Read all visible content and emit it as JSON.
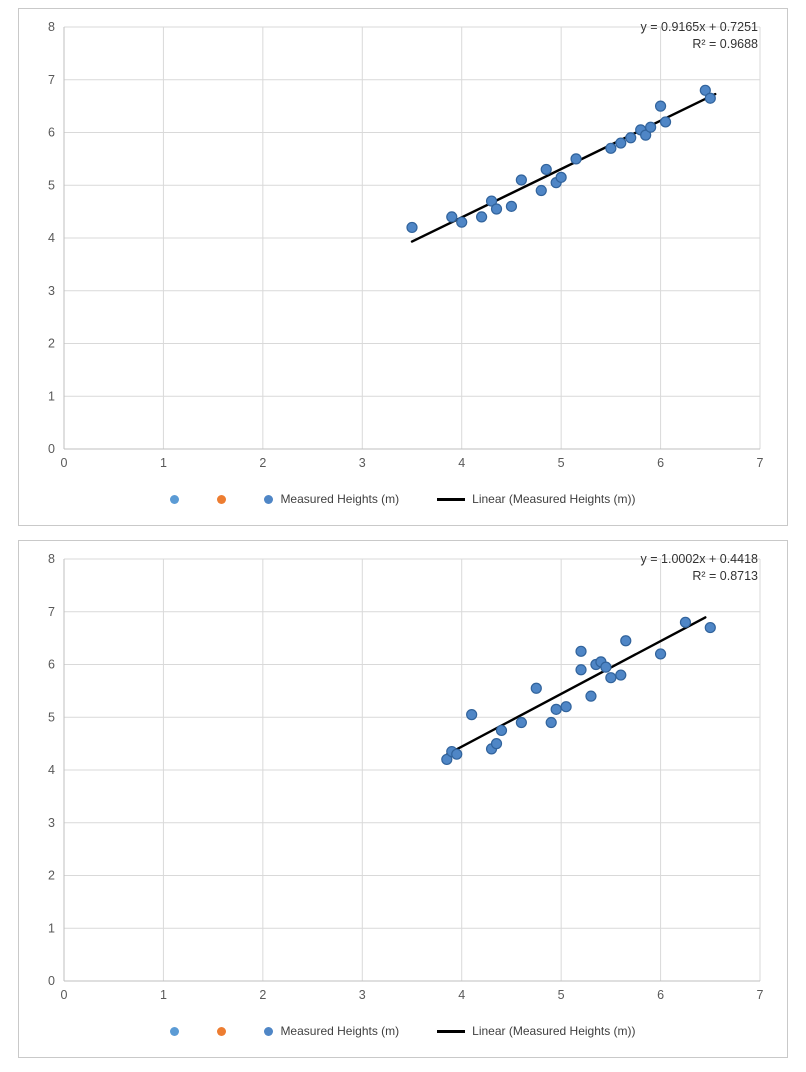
{
  "page": {
    "background": "#ffffff",
    "panel_border": "#c9c9c9"
  },
  "style": {
    "grid_color": "#d9d9d9",
    "axis_color": "#bfbfbf",
    "tick_color": "#595959",
    "annotation_color": "#333333",
    "point_fill": "#4f86c6",
    "point_stroke": "#31639c",
    "trend_color": "#000000"
  },
  "chart_data": [
    {
      "type": "scatter",
      "title": "",
      "xlabel": "",
      "ylabel": "",
      "equation": "y = 0.9165x + 0.7251",
      "r_squared": "R² = 0.9688",
      "xlim": [
        0,
        7
      ],
      "ylim": [
        0,
        8
      ],
      "x_ticks": [
        0,
        1,
        2,
        3,
        4,
        5,
        6,
        7
      ],
      "y_ticks": [
        0,
        1,
        2,
        3,
        4,
        5,
        6,
        7,
        8
      ],
      "grid": true,
      "legend_position": "bottom",
      "series": [
        {
          "name": "Measured Heights (m)",
          "points": [
            [
              3.5,
              4.2
            ],
            [
              3.9,
              4.4
            ],
            [
              4.0,
              4.3
            ],
            [
              4.2,
              4.4
            ],
            [
              4.3,
              4.7
            ],
            [
              4.35,
              4.55
            ],
            [
              4.5,
              4.6
            ],
            [
              4.6,
              5.1
            ],
            [
              4.8,
              4.9
            ],
            [
              4.85,
              5.3
            ],
            [
              4.95,
              5.05
            ],
            [
              5.0,
              5.15
            ],
            [
              5.15,
              5.5
            ],
            [
              5.5,
              5.7
            ],
            [
              5.6,
              5.8
            ],
            [
              5.7,
              5.9
            ],
            [
              5.8,
              6.05
            ],
            [
              5.85,
              5.95
            ],
            [
              5.9,
              6.1
            ],
            [
              6.0,
              6.5
            ],
            [
              6.05,
              6.2
            ],
            [
              6.45,
              6.8
            ],
            [
              6.5,
              6.65
            ]
          ]
        }
      ],
      "trendline": {
        "label": "Linear (Measured Heights (m))",
        "slope": 0.9165,
        "intercept": 0.7251,
        "x_range": [
          3.5,
          6.55
        ]
      },
      "legend": [
        {
          "marker": "dot",
          "color": "#5b9bd5",
          "label": ""
        },
        {
          "marker": "dot",
          "color": "#ed7d31",
          "label": ""
        },
        {
          "marker": "dot",
          "color": "#4f86c6",
          "label": "Measured Heights (m)"
        },
        {
          "marker": "line",
          "color": "#000000",
          "label": "Linear (Measured Heights (m))"
        }
      ]
    },
    {
      "type": "scatter",
      "title": "",
      "xlabel": "",
      "ylabel": "",
      "equation": "y = 1.0002x + 0.4418",
      "r_squared": "R² = 0.8713",
      "xlim": [
        0,
        7
      ],
      "ylim": [
        0,
        8
      ],
      "x_ticks": [
        0,
        1,
        2,
        3,
        4,
        5,
        6,
        7
      ],
      "y_ticks": [
        0,
        1,
        2,
        3,
        4,
        5,
        6,
        7,
        8
      ],
      "grid": true,
      "legend_position": "bottom",
      "series": [
        {
          "name": "Measured Heights (m)",
          "points": [
            [
              3.85,
              4.2
            ],
            [
              3.9,
              4.35
            ],
            [
              3.95,
              4.3
            ],
            [
              4.1,
              5.05
            ],
            [
              4.3,
              4.4
            ],
            [
              4.35,
              4.5
            ],
            [
              4.4,
              4.75
            ],
            [
              4.6,
              4.9
            ],
            [
              4.75,
              5.55
            ],
            [
              4.9,
              4.9
            ],
            [
              4.95,
              5.15
            ],
            [
              5.05,
              5.2
            ],
            [
              5.2,
              6.25
            ],
            [
              5.2,
              5.9
            ],
            [
              5.3,
              5.4
            ],
            [
              5.35,
              6.0
            ],
            [
              5.4,
              6.05
            ],
            [
              5.45,
              5.95
            ],
            [
              5.5,
              5.75
            ],
            [
              5.6,
              5.8
            ],
            [
              5.65,
              6.45
            ],
            [
              6.0,
              6.2
            ],
            [
              6.25,
              6.8
            ],
            [
              6.5,
              6.7
            ]
          ]
        }
      ],
      "trendline": {
        "label": "Linear (Measured Heights (m))",
        "slope": 1.0002,
        "intercept": 0.4418,
        "x_range": [
          3.85,
          6.45
        ]
      },
      "legend": [
        {
          "marker": "dot",
          "color": "#5b9bd5",
          "label": ""
        },
        {
          "marker": "dot",
          "color": "#ed7d31",
          "label": ""
        },
        {
          "marker": "dot",
          "color": "#4f86c6",
          "label": "Measured Heights (m)"
        },
        {
          "marker": "line",
          "color": "#000000",
          "label": "Linear (Measured Heights (m))"
        }
      ]
    }
  ]
}
